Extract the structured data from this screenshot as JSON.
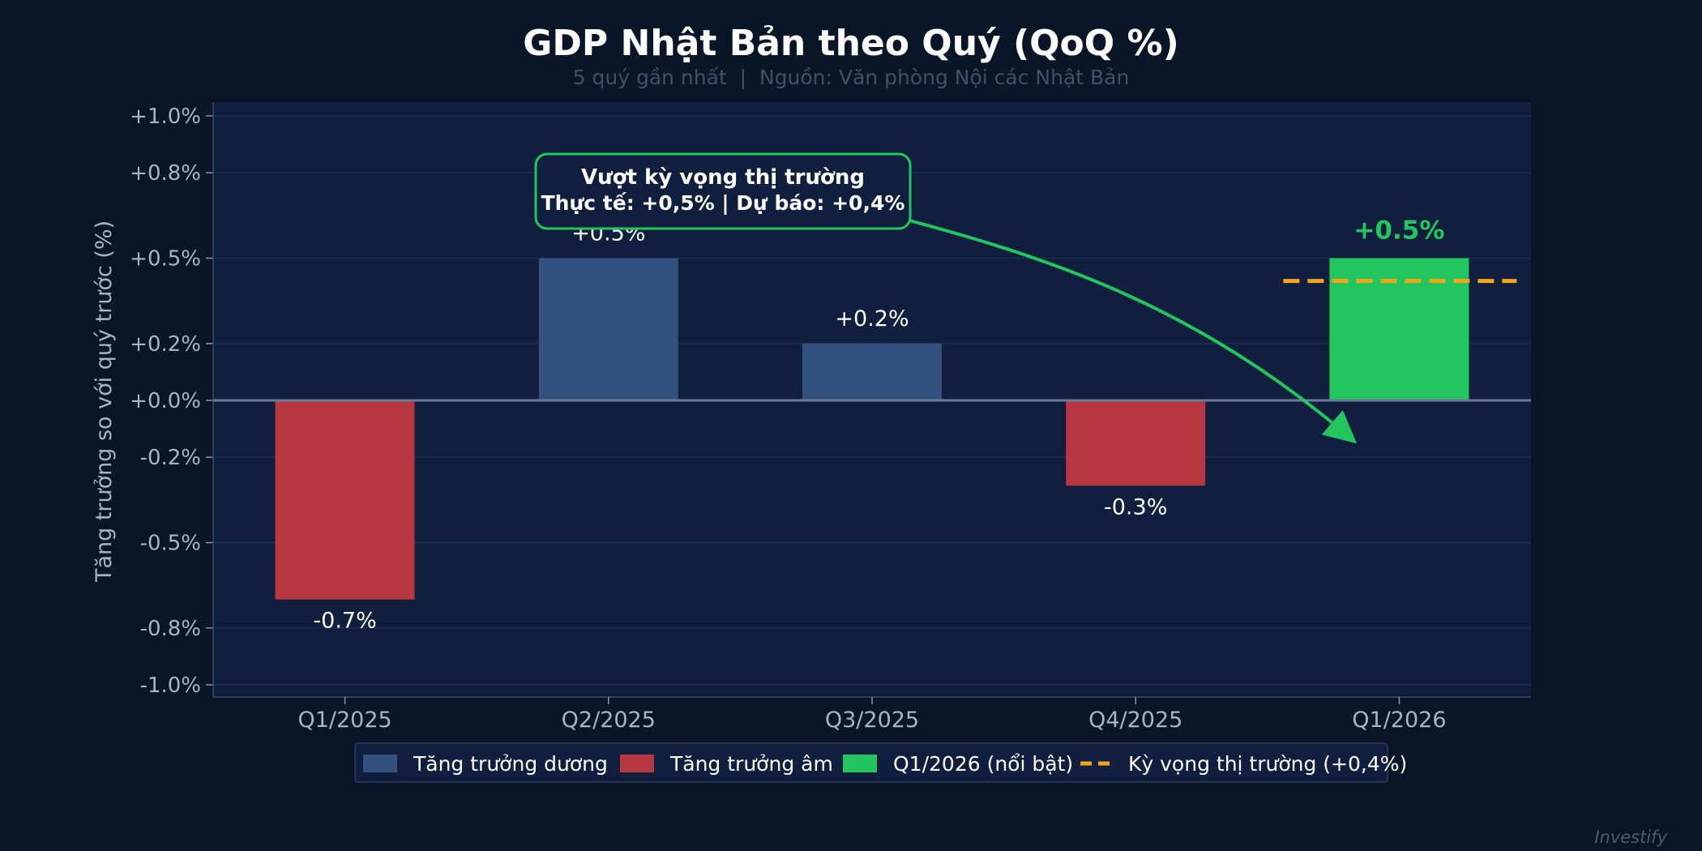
{
  "chart_data": {
    "type": "bar",
    "title": "GDP Nhật Bản theo Quý (QoQ %)",
    "subtitle": "5 quý gần nhất  |  Nguồn: Văn phòng Nội các Nhật Bản",
    "ylabel": "Tăng trưởng so với quý trước (%)",
    "xlabel": "",
    "ylim": [
      -1.0,
      1.0
    ],
    "yticks": [
      1.0,
      0.8,
      0.5,
      0.2,
      0.0,
      -0.2,
      -0.5,
      -0.8,
      -1.0
    ],
    "ytick_labels": [
      "+1.0%",
      "+0.8%",
      "+0.5%",
      "+0.2%",
      "+0.0%",
      "-0.2%",
      "-0.5%",
      "-0.8%",
      "-1.0%"
    ],
    "grid": true,
    "categories": [
      "Q1/2025",
      "Q2/2025",
      "Q3/2025",
      "Q4/2025",
      "Q1/2026"
    ],
    "values": [
      -0.7,
      0.5,
      0.2,
      -0.3,
      0.5
    ],
    "bar_values": [
      -0.7,
      0.5,
      0.2,
      -0.3,
      0.5
    ],
    "value_labels": [
      "-0.7%",
      "+0.5%",
      "+0.2%",
      "-0.3%",
      "+0.5%"
    ],
    "bar_kinds": [
      "negative",
      "positive",
      "positive",
      "negative",
      "highlight"
    ],
    "expectation": {
      "value": 0.4,
      "category_index": 4
    },
    "annotation": {
      "line1": "Vượt kỳ vọng thị trường",
      "line2": "Thực tế: +0,5%  |  Dự báo: +0,4%",
      "target_category_index": 4
    },
    "legend": {
      "placement": "bottom-center",
      "items": [
        {
          "label": "Tăng trưởng dương",
          "kind": "positive"
        },
        {
          "label": "Tăng trưởng âm",
          "kind": "negative"
        },
        {
          "label": "Q1/2026 (nổi bật)",
          "kind": "highlight"
        },
        {
          "label": "Kỳ vọng thị trường (+0,4%)",
          "kind": "expectation"
        }
      ]
    },
    "watermark": "Investify",
    "colors": {
      "background": "#0a1628",
      "plot_background": "#0f1f3d",
      "positive": "#34507f",
      "negative": "#b83841",
      "highlight": "#22c55e",
      "expectation": "#f0a818",
      "annotation": "#22c55e",
      "grid": "#1b2d50",
      "zero_line": "#6b7a99"
    }
  }
}
